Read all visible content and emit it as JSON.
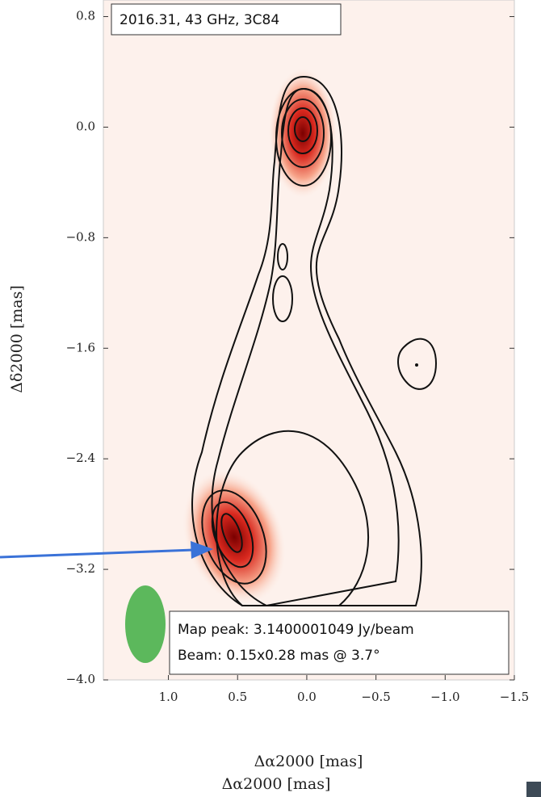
{
  "chart_data": {
    "type": "image",
    "annotations": [
      "2016.31, 43 GHz, 3C84",
      "Map peak: 3.1400001049 Jy/beam",
      "Beam: 0.15x0.28 mas @ 3.7°"
    ],
    "xlabel": "Δα2000 [mas]",
    "xlabel2": "Δα2000 [mas]",
    "ylabel": "Δδ2000 [mas]",
    "xlim": [
      1.47,
      -1.5
    ],
    "xticks": [
      {
        "value": 1,
        "label": "1.0"
      },
      0.5,
      {
        "value": 0,
        "label": "0.0"
      },
      {
        "value": -0.5,
        "label": "−0.5"
      },
      {
        "value": -1,
        "label": "−1.0"
      },
      {
        "value": -1.5,
        "label": "−1.5"
      }
    ],
    "ylim": [
      -4,
      0.92
    ],
    "yticks": [
      0.8,
      {
        "value": 0,
        "label": "0.0"
      },
      {
        "value": -0.8,
        "label": "−0.8"
      },
      {
        "value": -1.6,
        "label": "−1.6"
      },
      {
        "value": -2.4,
        "label": "−2.4"
      },
      {
        "value": -3.2,
        "label": "−3.2"
      },
      {
        "value": -4,
        "label": "−4.0"
      }
    ]
  }
}
